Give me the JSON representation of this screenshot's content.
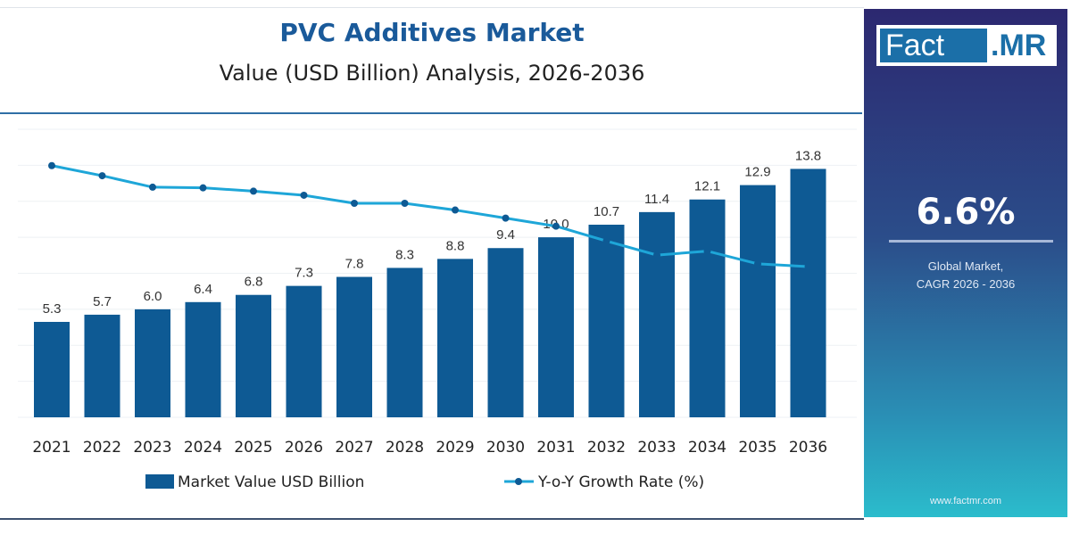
{
  "title": "PVC Additives Market",
  "subtitle": "Value (USD Billion) Analysis, 2026-2036",
  "panel": {
    "logo_left": "Fact",
    "logo_right": ".MR",
    "cagr": "6.6%",
    "line1": "Global Market,",
    "line2": "CAGR 2026 - 2036",
    "url": "www.factmr.com",
    "gradient_top": "#2c2870",
    "gradient_bottom": "#2bbccc"
  },
  "chart_data": {
    "type": "bar",
    "categories": [
      "2021",
      "2022",
      "2023",
      "2024",
      "2025",
      "2026",
      "2027",
      "2028",
      "2029",
      "2030",
      "2031",
      "2032",
      "2033",
      "2034",
      "2035",
      "2036"
    ],
    "series": [
      {
        "name": "Market Value USD Billion",
        "type": "bar",
        "color": "#0e5a94",
        "values": [
          5.3,
          5.7,
          6.0,
          6.4,
          6.8,
          7.3,
          7.8,
          8.3,
          8.8,
          9.4,
          10.0,
          10.7,
          11.4,
          12.1,
          12.9,
          13.8
        ],
        "labels": [
          "5.3",
          "5.7",
          "6.0",
          "6.4",
          "6.8",
          "7.3",
          "7.8",
          "8.3",
          "8.8",
          "9.4",
          "10.0",
          "10.7",
          "11.4",
          "12.1",
          "12.9",
          "13.8"
        ]
      },
      {
        "name": "Y-o-Y Growth Rate (%)",
        "type": "line",
        "color": "#1ea6d8",
        "values": [
          7.5,
          7.35,
          7.18,
          7.17,
          7.12,
          7.06,
          6.94,
          6.94,
          6.84,
          6.72,
          6.6,
          6.38,
          6.17,
          6.23,
          6.04,
          6.0
        ]
      }
    ],
    "ylim": [
      0,
      16
    ],
    "y2lim": [
      3.76,
      8.04
    ],
    "grid": true,
    "legend": "bottom"
  }
}
